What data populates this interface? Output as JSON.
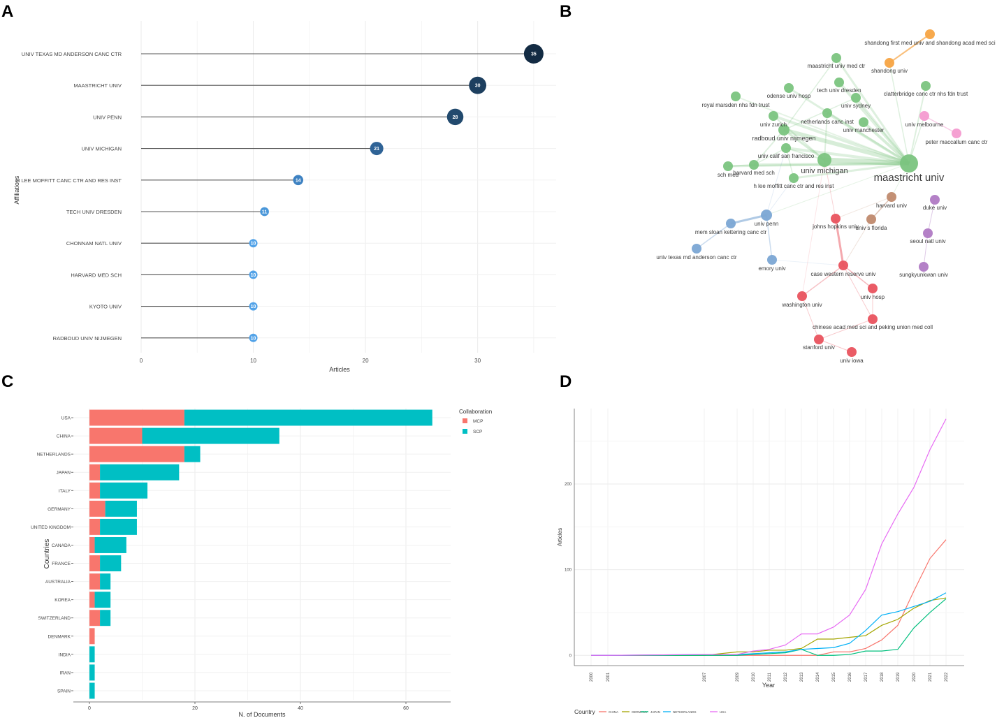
{
  "panel_letters": [
    "A",
    "B",
    "C",
    "D"
  ],
  "chart_data": [
    {
      "panel": "A",
      "type": "scatter",
      "subtype": "lollipop",
      "xlabel": "Articles",
      "ylabel": "Affiliations",
      "xlim": [
        0,
        37
      ],
      "xticks": [
        0,
        10,
        20,
        30
      ],
      "categories": [
        "UNIV TEXAS MD ANDERSON CANC CTR",
        "MAASTRICHT UNIV",
        "UNIV PENN",
        "UNIV MICHIGAN",
        "H LEE MOFFITT CANC CTR AND RES INST",
        "TECH UNIV DRESDEN",
        "CHONNAM NATL UNIV",
        "HARVARD MED SCH",
        "KYOTO UNIV",
        "RADBOUD UNIV NIJMEGEN"
      ],
      "values": [
        35,
        30,
        28,
        21,
        14,
        11,
        10,
        10,
        10,
        10
      ],
      "labels": [
        "35",
        "30",
        "28",
        "21",
        "14",
        "11",
        "10",
        "10",
        "10",
        "10"
      ],
      "colors": [
        "#132b43",
        "#1d3f5f",
        "#224a6e",
        "#2f6396",
        "#3e82c2",
        "#4a97d9",
        "#53a3e8",
        "#53a3e8",
        "#53a3e8",
        "#53a3e8"
      ]
    },
    {
      "panel": "B",
      "type": "network",
      "nodes": [
        {
          "id": "maastricht univ",
          "cluster": "green"
        },
        {
          "id": "univ michigan",
          "cluster": "green"
        },
        {
          "id": "radboud univ nijmegen",
          "cluster": "green"
        },
        {
          "id": "univ calif san francisco",
          "cluster": "green"
        },
        {
          "id": "harvard med sch",
          "cluster": "green"
        },
        {
          "id": "sch med",
          "cluster": "green"
        },
        {
          "id": "h lee moffitt canc ctr and res inst",
          "cluster": "green"
        },
        {
          "id": "univ zurich",
          "cluster": "green"
        },
        {
          "id": "netherlands canc inst",
          "cluster": "green"
        },
        {
          "id": "univ manchester",
          "cluster": "green"
        },
        {
          "id": "univ sydney",
          "cluster": "green"
        },
        {
          "id": "tech univ dresden",
          "cluster": "green"
        },
        {
          "id": "maastricht univ med ctr",
          "cluster": "green"
        },
        {
          "id": "odense univ hosp",
          "cluster": "green"
        },
        {
          "id": "royal marsden nhs fdn trust",
          "cluster": "green"
        },
        {
          "id": "clatterbridge canc ctr nhs fdn trust",
          "cluster": "green"
        },
        {
          "id": "shandong first med univ and shandong acad med sci",
          "cluster": "orange"
        },
        {
          "id": "shandong univ",
          "cluster": "orange"
        },
        {
          "id": "univ melbourne",
          "cluster": "pink"
        },
        {
          "id": "peter maccallum canc ctr",
          "cluster": "pink"
        },
        {
          "id": "harvard univ",
          "cluster": "brown"
        },
        {
          "id": "univ s florida",
          "cluster": "brown"
        },
        {
          "id": "duke univ",
          "cluster": "purple"
        },
        {
          "id": "seoul natl univ",
          "cluster": "purple"
        },
        {
          "id": "sungkyunkwan univ",
          "cluster": "purple"
        },
        {
          "id": "univ penn",
          "cluster": "blue"
        },
        {
          "id": "mem sloan kettering canc ctr",
          "cluster": "blue"
        },
        {
          "id": "univ texas md anderson canc ctr",
          "cluster": "blue"
        },
        {
          "id": "emory univ",
          "cluster": "blue"
        },
        {
          "id": "johns hopkins univ",
          "cluster": "red"
        },
        {
          "id": "case western reserve univ",
          "cluster": "red"
        },
        {
          "id": "univ hosp",
          "cluster": "red"
        },
        {
          "id": "washington univ",
          "cluster": "red"
        },
        {
          "id": "chinese acad med sci and peking union med coll",
          "cluster": "red"
        },
        {
          "id": "stanford univ",
          "cluster": "red"
        },
        {
          "id": "univ iowa",
          "cluster": "red"
        }
      ],
      "cluster_colors": {
        "green": "#7bc47f",
        "orange": "#f7a443",
        "pink": "#f49bd0",
        "brown": "#c08a6e",
        "purple": "#b07ac4",
        "blue": "#7ba6d4",
        "red": "#e9535e"
      }
    },
    {
      "panel": "C",
      "type": "bar",
      "orientation": "horizontal",
      "stacked": true,
      "xlabel": "N. of Documents",
      "ylabel": "Countries",
      "xlim": [
        0,
        68
      ],
      "xticks": [
        0,
        20,
        40,
        60
      ],
      "legend_title": "Collaboration",
      "legend_position": "top-right",
      "categories": [
        "USA",
        "CHINA",
        "NETHERLANDS",
        "JAPAN",
        "ITALY",
        "GERMANY",
        "UNITED KINGDOM",
        "CANADA",
        "FRANCE",
        "AUSTRALIA",
        "KOREA",
        "SWITZERLAND",
        "DENMARK",
        "INDIA",
        "IRAN",
        "SPAIN"
      ],
      "series": [
        {
          "name": "MCP",
          "color": "#f8766d",
          "values": [
            18,
            10,
            18,
            2,
            2,
            3,
            2,
            1,
            2,
            2,
            1,
            2,
            1,
            0,
            0,
            0
          ]
        },
        {
          "name": "SCP",
          "color": "#00bfc4",
          "values": [
            47,
            26,
            3,
            15,
            9,
            6,
            7,
            6,
            4,
            2,
            3,
            2,
            0,
            1,
            1,
            1
          ]
        }
      ]
    },
    {
      "panel": "D",
      "type": "line",
      "xlabel": "Year",
      "ylabel": "Articles",
      "ylim": [
        -12,
        288
      ],
      "yticks": [
        0,
        100,
        200
      ],
      "x": [
        2000,
        2001,
        2007,
        2009,
        2010,
        2011,
        2012,
        2013,
        2014,
        2015,
        2016,
        2017,
        2018,
        2019,
        2020,
        2021,
        2022
      ],
      "xtick_labels": [
        "2000",
        "2001",
        "2007",
        "2009",
        "2010",
        "2011",
        "2012",
        "2013",
        "2014",
        "2015",
        "2016",
        "2017",
        "2018",
        "2019",
        "2020",
        "2021",
        "2022"
      ],
      "legend_title": "Country",
      "legend_position": "bottom",
      "series": [
        {
          "name": "CHINA",
          "color": "#f8766d",
          "values": [
            0,
            0,
            0,
            0,
            0,
            0,
            0,
            0,
            0,
            4,
            4,
            8,
            18,
            35,
            75,
            113,
            135
          ]
        },
        {
          "name": "GERMANY",
          "color": "#a3a500",
          "values": [
            0,
            0,
            0,
            4,
            4,
            6,
            6,
            8,
            19,
            19,
            21,
            23,
            35,
            42,
            55,
            64,
            67
          ]
        },
        {
          "name": "JAPAN",
          "color": "#00bf7d",
          "values": [
            0,
            0,
            0,
            0,
            1,
            2,
            3,
            7,
            0,
            0,
            1,
            5,
            5,
            7,
            32,
            50,
            66
          ]
        },
        {
          "name": "NETHERLANDS",
          "color": "#00b0f6",
          "values": [
            0,
            0,
            1,
            1,
            2,
            3,
            4,
            7,
            8,
            9,
            14,
            29,
            47,
            51,
            57,
            63,
            73
          ]
        },
        {
          "name": "USA",
          "color": "#e76bf3",
          "values": [
            0,
            0,
            1,
            1,
            5,
            7,
            12,
            25,
            25,
            33,
            47,
            77,
            130,
            165,
            196,
            240,
            276
          ]
        }
      ]
    }
  ]
}
